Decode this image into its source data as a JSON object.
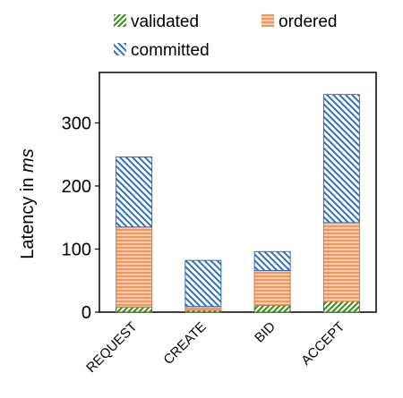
{
  "chart_data": {
    "type": "bar",
    "stacked": true,
    "categories": [
      "REQUEST",
      "CREATE",
      "BID",
      "ACCEPT"
    ],
    "series": [
      {
        "name": "validated",
        "values": [
          8,
          3,
          11,
          17
        ],
        "color": "#4a8a2a",
        "pattern": "diagonal-up"
      },
      {
        "name": "ordered",
        "values": [
          127,
          6,
          55,
          125
        ],
        "color": "#f0a77a",
        "pattern": "horizontal"
      },
      {
        "name": "committed",
        "values": [
          111,
          73,
          30,
          203
        ],
        "color": "#2f6fc1",
        "pattern": "diagonal-down"
      }
    ],
    "ylabel_prefix": "Latency in ",
    "ylabel_unit": "ms",
    "ylim": [
      0,
      380
    ],
    "yticks": [
      0,
      100,
      200,
      300
    ],
    "legend": "top",
    "grid": false
  }
}
